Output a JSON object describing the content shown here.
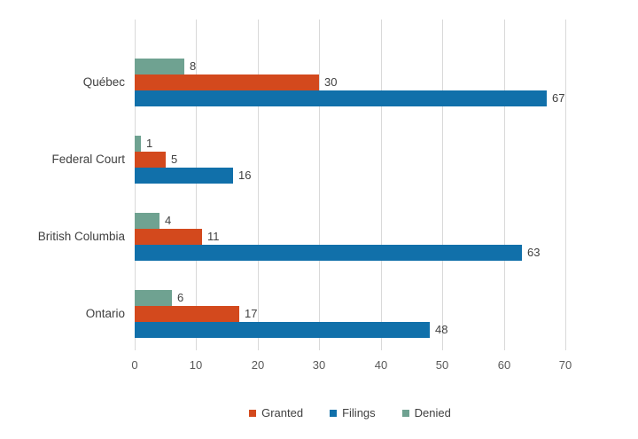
{
  "chart_data": {
    "type": "bar",
    "orientation": "horizontal",
    "title": "",
    "xlabel": "",
    "ylabel": "",
    "categories": [
      "Québec",
      "Federal Court",
      "British Columbia",
      "Ontario"
    ],
    "series": [
      {
        "name": "Granted",
        "color": "#d3491d",
        "values": [
          30,
          5,
          11,
          17
        ]
      },
      {
        "name": "Filings",
        "color": "#1170aa",
        "values": [
          67,
          16,
          63,
          48
        ]
      },
      {
        "name": "Denied",
        "color": "#6fa291",
        "values": [
          8,
          1,
          4,
          6
        ]
      }
    ],
    "bar_order_top_to_bottom": [
      "Denied",
      "Granted",
      "Filings"
    ],
    "xlim": [
      0,
      70
    ],
    "x_ticks": [
      0,
      10,
      20,
      30,
      40,
      50,
      60,
      70
    ],
    "grid": "vertical",
    "data_labels": true,
    "legend_position": "bottom",
    "legend_order": [
      "Granted",
      "Filings",
      "Denied"
    ]
  },
  "colors": {
    "background": "#ffffff",
    "gridline": "#d9d9d9",
    "category_text": "#404040",
    "value_text": "#404040",
    "axis_text": "#595959",
    "legend_text": "#404040"
  }
}
